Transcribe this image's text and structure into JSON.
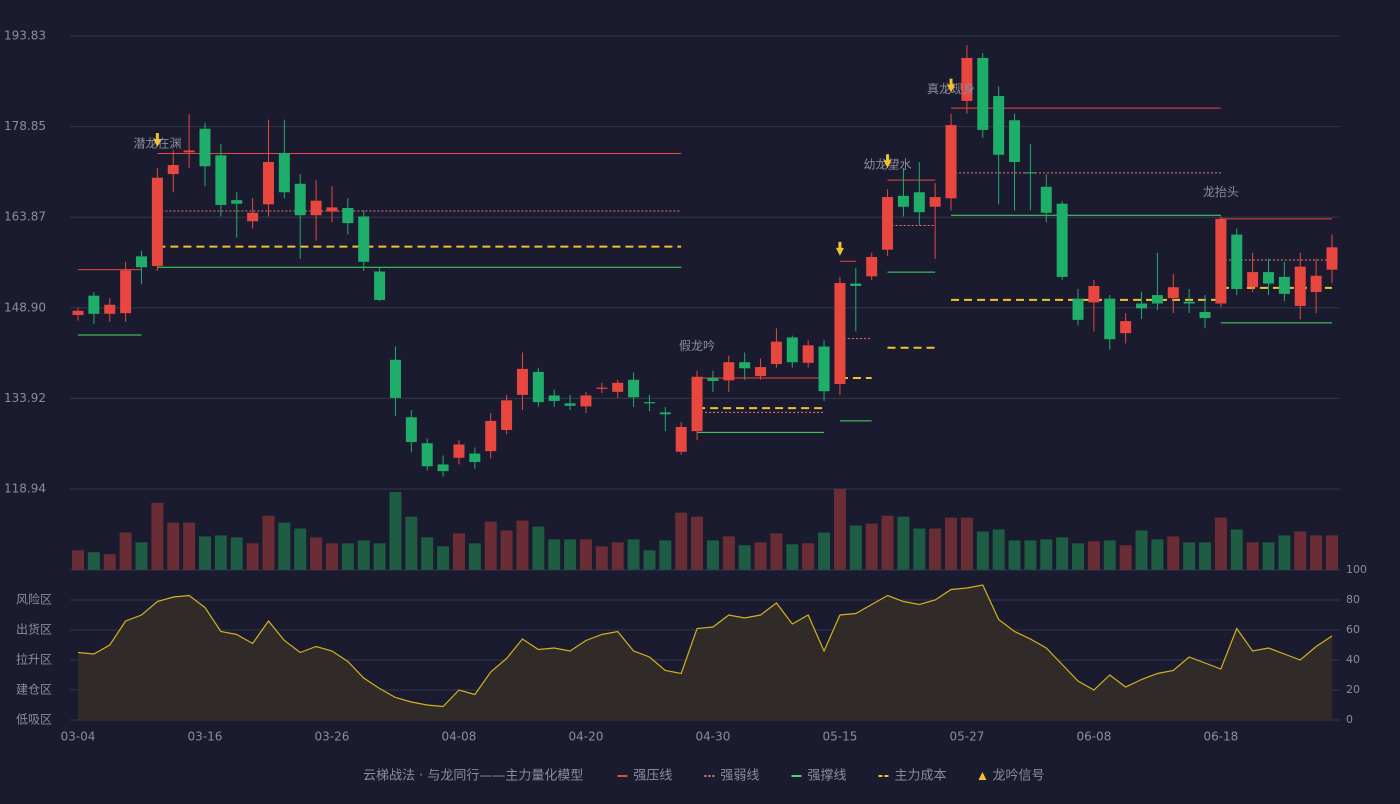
{
  "chart_data": {
    "type": "candlestick",
    "categories": [
      "03-04",
      null,
      null,
      null,
      null,
      null,
      null,
      null,
      "03-16",
      null,
      null,
      null,
      null,
      null,
      null,
      null,
      "03-26",
      null,
      null,
      null,
      null,
      null,
      null,
      null,
      "04-08",
      null,
      null,
      null,
      null,
      null,
      null,
      null,
      "04-20",
      null,
      null,
      null,
      null,
      null,
      null,
      null,
      "04-30",
      null,
      null,
      null,
      null,
      null,
      null,
      null,
      "05-15",
      null,
      null,
      null,
      null,
      null,
      null,
      null,
      "05-27",
      null,
      null,
      null,
      null,
      null,
      null,
      null,
      "06-08",
      null,
      null,
      null,
      null,
      null,
      null,
      null,
      "06-18",
      null,
      null,
      null,
      null,
      null,
      null,
      null
    ],
    "open": [
      147.7,
      150.9,
      147.9,
      148,
      157.4,
      155.8,
      171,
      174.6,
      178.5,
      174.1,
      166.7,
      163.2,
      166,
      174.5,
      169.4,
      164.2,
      164.8,
      165.4,
      164,
      154.9,
      140.3,
      130.8,
      126.5,
      123,
      124.1,
      124.8,
      125.2,
      128.7,
      134.5,
      138.3,
      134.4,
      133.1,
      132.6,
      135.5,
      135,
      137,
      133.3,
      131.6,
      125.1,
      128.5,
      137.3,
      136.9,
      139.9,
      137.6,
      139.6,
      144,
      139.8,
      142.5,
      136.3,
      152.9,
      154.1,
      158.5,
      167.4,
      168,
      165.6,
      167,
      183.1,
      190.2,
      183.9,
      179.9,
      171.3,
      168.9,
      166.1,
      150.4,
      149.8,
      150.4,
      144.7,
      149.6,
      151,
      150.5,
      149.9,
      148.2,
      149.6,
      161,
      152.3,
      154.8,
      154,
      149.2,
      151.5,
      155.2
    ],
    "high": [
      148.9,
      151.5,
      150.5,
      156.5,
      158.3,
      172,
      175,
      180.9,
      179.5,
      176,
      168,
      167,
      180,
      180,
      171,
      170,
      169,
      167,
      165,
      155.5,
      142.5,
      132,
      127.3,
      124.5,
      127,
      125.8,
      131.5,
      134.5,
      141.5,
      139,
      135.4,
      134.5,
      135,
      136.5,
      137,
      138.2,
      134.5,
      132.5,
      130,
      138.5,
      138.5,
      141,
      141.5,
      140.5,
      145.5,
      144.3,
      143.5,
      143.5,
      154,
      155.5,
      158,
      168.5,
      172,
      173,
      169.5,
      181,
      192.3,
      191,
      185.5,
      181,
      176,
      171,
      166.5,
      152,
      153.5,
      151,
      148,
      151.5,
      158,
      154.5,
      152,
      151,
      164,
      162,
      158,
      157,
      156.5,
      158,
      157,
      161
    ],
    "low": [
      146.8,
      146.2,
      146.6,
      146.6,
      152.8,
      155,
      168,
      172,
      169,
      164,
      160.5,
      162,
      164,
      167,
      157,
      160,
      163,
      161,
      155,
      150,
      131,
      125,
      122,
      121,
      123,
      122.3,
      124,
      128,
      132,
      132.5,
      132.5,
      132,
      131.5,
      134.8,
      134,
      132.5,
      131.8,
      128.5,
      124.6,
      127,
      135,
      135,
      137,
      137,
      139,
      139,
      139,
      133.5,
      134.5,
      145,
      153.5,
      157.5,
      164,
      162.5,
      157,
      165,
      181,
      177,
      166,
      165,
      165,
      163,
      153.5,
      146,
      145,
      142,
      143,
      147,
      148.5,
      148,
      148,
      145.5,
      149,
      151,
      151.5,
      151,
      150,
      147,
      148,
      153
    ],
    "close": [
      148.4,
      147.9,
      149.4,
      155.1,
      155.6,
      170.4,
      172.5,
      174.9,
      172.3,
      165.9,
      166.1,
      164.6,
      173,
      168,
      164.2,
      166.6,
      165.5,
      162.9,
      156.5,
      150.2,
      134,
      126.7,
      122.7,
      121.9,
      126.3,
      123.4,
      130.2,
      133.6,
      138.8,
      133.3,
      133.5,
      132.7,
      134.4,
      135.7,
      136.5,
      134.1,
      133.1,
      131.3,
      129.2,
      137.5,
      136.8,
      139.9,
      138.9,
      139.1,
      143.3,
      139.9,
      142.7,
      135.1,
      153,
      152.5,
      157.3,
      167.2,
      165.6,
      164.7,
      167.2,
      179.1,
      190.2,
      178.3,
      174.2,
      173,
      171.1,
      164.6,
      154,
      146.9,
      152.5,
      143.7,
      146.7,
      148.8,
      149.6,
      152.3,
      149.6,
      147.2,
      163.6,
      152,
      154.8,
      152.9,
      151.2,
      155.7,
      154.2,
      158.9
    ],
    "up_color": "#e8473f",
    "down_color": "#1fae6a",
    "ylim": [
      118.94,
      193.83
    ],
    "yticks": [
      118.94,
      133.92,
      {
        "value": 148.9,
        "label": "148.90"
      },
      163.87,
      178.85,
      193.83
    ],
    "grid": true,
    "volume": {
      "values": [
        20,
        18,
        16,
        38,
        28,
        68,
        48,
        48,
        34,
        35,
        33,
        27,
        55,
        48,
        42,
        33,
        27,
        27,
        30,
        27,
        79,
        54,
        33,
        24,
        37,
        27,
        49,
        40,
        50,
        44,
        31,
        31,
        31,
        24,
        28,
        31,
        20,
        30,
        58,
        54,
        30,
        34,
        25,
        28,
        37,
        26,
        27,
        38,
        82,
        45,
        47,
        55,
        54,
        42,
        42,
        53,
        53,
        39,
        41,
        30,
        30,
        31,
        33,
        27,
        29,
        30,
        25,
        40,
        31,
        34,
        28,
        28,
        53,
        41,
        28,
        28,
        35,
        39,
        35,
        35
      ],
      "ylim": [
        0,
        82
      ],
      "up_color": "#6b2d35",
      "down_color": "#1e5c44"
    },
    "oscillator": {
      "values": [
        45,
        44,
        50,
        66,
        70,
        79,
        82,
        83,
        75,
        59,
        57,
        51,
        66,
        53,
        45,
        49,
        46,
        39,
        28,
        21,
        15,
        12,
        10,
        9,
        20,
        17,
        32,
        41,
        54,
        47,
        48,
        46,
        53,
        57,
        59,
        46,
        42,
        33,
        31,
        61,
        62,
        70,
        68,
        70,
        78,
        64,
        70,
        46,
        70,
        71,
        77,
        83,
        79,
        77,
        80,
        87,
        88,
        90,
        67,
        59,
        54,
        48,
        37,
        26,
        20,
        30,
        22,
        27,
        31,
        33,
        42,
        38,
        34,
        61,
        46,
        48,
        44,
        40,
        49,
        56
      ],
      "ylim": [
        0,
        100
      ],
      "yticks": [
        0,
        20,
        40,
        60,
        80,
        100
      ],
      "ytick_colors": [
        "#e8473f",
        "#e8473f",
        "#4a8cff",
        "#e040e0",
        "#f0a030",
        "#4cd964"
      ],
      "zones": [
        {
          "label": "低吸区",
          "value": 0,
          "color": "#e8473f"
        },
        {
          "label": "建仓区",
          "value": 20,
          "color": "#e8473f"
        },
        {
          "label": "拉升区",
          "value": 40,
          "color": "#4a8cff"
        },
        {
          "label": "出货区",
          "value": 60,
          "color": "#e040e0"
        },
        {
          "label": "风险区",
          "value": 80,
          "color": "#f0a030"
        }
      ],
      "color": "#d4b020"
    },
    "levels": [
      {
        "value": 155.2,
        "from": 0,
        "to": 4,
        "color": "#e8473f",
        "style": "solid"
      },
      {
        "value": 144.4,
        "from": 0,
        "to": 4,
        "color": "#4cd964",
        "style": "solid"
      },
      {
        "value": 174.4,
        "from": 5,
        "to": 38,
        "color": "#e8473f",
        "style": "solid"
      },
      {
        "value": 164.9,
        "from": 5,
        "to": 38,
        "color": "#e8737a",
        "style": "dotted"
      },
      {
        "value": 159,
        "from": 5,
        "to": 38,
        "color": "#f2c12e",
        "style": "dashed"
      },
      {
        "value": 155.6,
        "from": 5,
        "to": 38,
        "color": "#4cd964",
        "style": "solid"
      },
      {
        "value": 137.3,
        "from": 39,
        "to": 47,
        "color": "#e8473f",
        "style": "solid"
      },
      {
        "value": 132.3,
        "from": 39,
        "to": 47,
        "color": "#f2c12e",
        "style": "dashed"
      },
      {
        "value": 131.6,
        "from": 39,
        "to": 47,
        "color": "#e8737a",
        "style": "dotted"
      },
      {
        "value": 128.3,
        "from": 39,
        "to": 47,
        "color": "#4cd964",
        "style": "solid"
      },
      {
        "value": 156.6,
        "from": 48,
        "to": 49,
        "color": "#e8473f",
        "style": "solid"
      },
      {
        "value": 143.8,
        "from": 48,
        "to": 50,
        "color": "#e8737a",
        "style": "dotted"
      },
      {
        "value": 137.3,
        "from": 48,
        "to": 50,
        "color": "#f2c12e",
        "style": "dashed"
      },
      {
        "value": 130.2,
        "from": 48,
        "to": 50,
        "color": "#4cd964",
        "style": "solid"
      },
      {
        "value": 170,
        "from": 51,
        "to": 54,
        "color": "#e8473f",
        "style": "solid"
      },
      {
        "value": 162.5,
        "from": 51,
        "to": 54,
        "color": "#e8737a",
        "style": "dotted"
      },
      {
        "value": 154.8,
        "from": 51,
        "to": 54,
        "color": "#4cd964",
        "style": "solid"
      },
      {
        "value": 142.3,
        "from": 51,
        "to": 54,
        "color": "#f2c12e",
        "style": "dashed"
      },
      {
        "value": 181.9,
        "from": 55,
        "to": 72,
        "color": "#e8473f",
        "style": "solid"
      },
      {
        "value": 171.2,
        "from": 55,
        "to": 72,
        "color": "#e8737a",
        "style": "dotted"
      },
      {
        "value": 164.2,
        "from": 55,
        "to": 72,
        "color": "#4cd964",
        "style": "solid"
      },
      {
        "value": 150.2,
        "from": 55,
        "to": 72,
        "color": "#f2c12e",
        "style": "dashed"
      },
      {
        "value": 163.6,
        "from": 72,
        "to": 79,
        "color": "#e8473f",
        "style": "solid"
      },
      {
        "value": 156.8,
        "from": 72,
        "to": 79,
        "color": "#e8737a",
        "style": "dotted"
      },
      {
        "value": 152.2,
        "from": 72,
        "to": 79,
        "color": "#f2c12e",
        "style": "dashed"
      },
      {
        "value": 146.4,
        "from": 72,
        "to": 79,
        "color": "#4cd964",
        "style": "solid"
      }
    ],
    "signals": [
      {
        "index": 5,
        "label": "潜龙在渊",
        "color": "#f2c12e",
        "arrow": true
      },
      {
        "index": 39,
        "label": "假龙吟",
        "color": "#ff6b6b",
        "arrow": false
      },
      {
        "index": 48,
        "color": "#f2c12e",
        "arrow": true
      },
      {
        "index": 51,
        "label": "幼龙望水",
        "color": "#f2c12e",
        "arrow": true
      },
      {
        "index": 55,
        "label": "真龙现身",
        "color": "#f2c12e",
        "arrow": true
      },
      {
        "index": 72,
        "label": "龙抬头",
        "color": "#5ab4ff",
        "arrow": false
      }
    ],
    "legend": {
      "title": "云梯战法 · 与龙同行——主力量化模型",
      "title_color": "#f2c12e",
      "items": [
        {
          "label": "强压线",
          "style": "solid",
          "color": "#e8473f"
        },
        {
          "label": "强弱线",
          "style": "dotted",
          "color": "#e8737a"
        },
        {
          "label": "强撑线",
          "style": "solid",
          "color": "#4cd964"
        },
        {
          "label": "主力成本",
          "style": "dashed",
          "color": "#f2c12e"
        },
        {
          "label": "龙吟信号",
          "style": "triangle",
          "color": "#f2c12e"
        }
      ]
    }
  }
}
